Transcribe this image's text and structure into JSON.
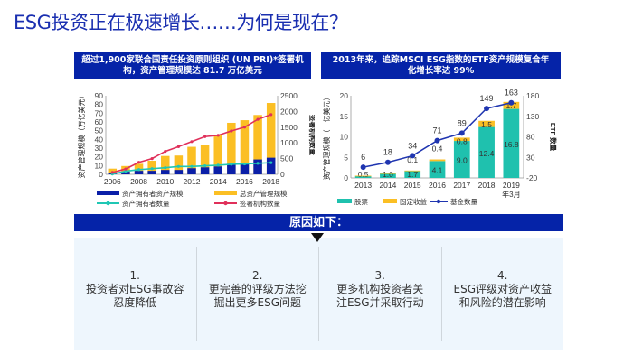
{
  "title": "ESG投资正在极速增长……为何是现在？",
  "left_panel": {
    "header": "超过1,900家联合国责任投资原则组织 (UN PRI)*签署机构，资产管理规模达 81.7 万亿美元"
  },
  "right_panel": {
    "header": "2013年来，追踪MSCI ESG指数的ETF资产规模复合年化增长率达 99%"
  },
  "reasons_banner": "原因如下：",
  "reasons": [
    {
      "num": "1.",
      "line1": "投资者对ESG事故容",
      "line2": "忍度降低"
    },
    {
      "num": "2.",
      "line1": "更完善的评级方法挖",
      "line2": "掘出更多ESG问题"
    },
    {
      "num": "3.",
      "line1": "更多机构投资者关",
      "line2": "注ESG并采取行动"
    },
    {
      "num": "4.",
      "line1": "ESG评级对资产收益",
      "line2": "和风险的潜在影响"
    }
  ],
  "chart_data": [
    {
      "type": "bar",
      "stacked": false,
      "categories": [
        "2006",
        "2007",
        "2008",
        "2009",
        "2010",
        "2011",
        "2012",
        "2013",
        "2014",
        "2015",
        "2016",
        "2017",
        "2018"
      ],
      "x_tick_labels": [
        "2006",
        "2008",
        "2010",
        "2012",
        "2014",
        "2016",
        "2018"
      ],
      "ylabel": "资产管理规模（万亿美元）",
      "ylim": [
        0,
        90
      ],
      "yticks": [
        0,
        10,
        20,
        30,
        40,
        50,
        60,
        70,
        80,
        90
      ],
      "y2label": "签署机构数量",
      "y2lim": [
        0,
        2500
      ],
      "y2ticks": [
        0,
        500,
        1000,
        1500,
        2000,
        2500
      ],
      "series": [
        {
          "name": "资产拥有者资产规模",
          "kind": "bar",
          "axis": "left",
          "color": "#0a1fa8",
          "values": [
            2,
            3,
            4,
            4,
            5,
            5,
            7,
            8,
            9,
            12,
            13,
            17,
            19
          ]
        },
        {
          "name": "总资产管理规模",
          "kind": "bar",
          "axis": "left",
          "color": "#fbbf24",
          "values": [
            6.5,
            9.5,
            12,
            15.5,
            21,
            21.5,
            31.5,
            34,
            45,
            59,
            62,
            68,
            81.7
          ]
        },
        {
          "name": "资产拥有者数量",
          "kind": "line",
          "axis": "right",
          "color": "#1fc7b4",
          "values": [
            10,
            100,
            150,
            180,
            210,
            250,
            250,
            270,
            290,
            320,
            330,
            350,
            370
          ]
        },
        {
          "name": "签署机构数量",
          "kind": "line",
          "axis": "right",
          "color": "#e0305a",
          "values": [
            60,
            170,
            380,
            500,
            730,
            880,
            1040,
            1200,
            1240,
            1380,
            1500,
            1750,
            1900
          ]
        }
      ],
      "legend": "bottom",
      "grid": false
    },
    {
      "type": "bar",
      "stacked": true,
      "categories": [
        "2013",
        "2014",
        "2015",
        "2016",
        "2017",
        "2018",
        "2019"
      ],
      "category_sublabels": [
        "",
        "",
        "",
        "",
        "",
        "",
        "年3月"
      ],
      "ylabel": "资产管理规模（十亿美元）",
      "ylim": [
        0,
        20
      ],
      "yticks": [
        0,
        5,
        10,
        15,
        20
      ],
      "y2label": "ETF 数量",
      "y2lim": [
        -20,
        180
      ],
      "y2ticks": [
        -20,
        30,
        80,
        130,
        180
      ],
      "series": [
        {
          "name": "股票",
          "kind": "bar",
          "axis": "left",
          "color": "#1fc1ae",
          "values": [
            0.5,
            1.0,
            1.7,
            4.1,
            9.0,
            12.4,
            16.8
          ],
          "labels": [
            "0.5",
            "1.0",
            "1.7",
            "4.1",
            "9.0",
            "12.4",
            "16.8"
          ]
        },
        {
          "name": "固定收益",
          "kind": "bar",
          "axis": "left",
          "color": "#fbbf24",
          "values": [
            0.05,
            0.15,
            0.1,
            0.4,
            0.8,
            1.5,
            1.7
          ],
          "labels": [
            "",
            "",
            "0.1",
            "0.4",
            "0.8",
            "1.5",
            "1.7"
          ]
        },
        {
          "name": "基金数量",
          "kind": "line",
          "axis": "right",
          "color": "#1f35b0",
          "values": [
            6,
            18,
            34,
            71,
            89,
            149,
            163
          ],
          "labels": [
            "6",
            "18",
            "34",
            "71",
            "89",
            "149",
            "163"
          ]
        }
      ],
      "legend": "bottom",
      "grid": false
    }
  ]
}
